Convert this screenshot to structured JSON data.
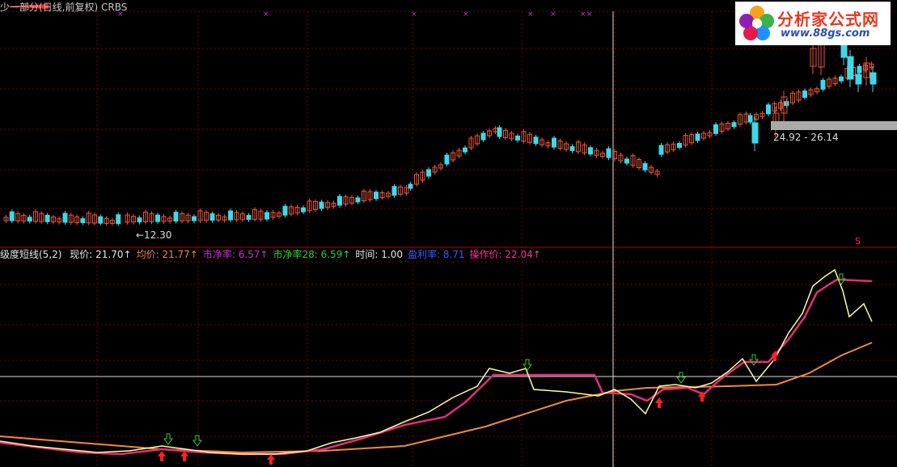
{
  "window": {
    "title": "少一部分(日线,前复权) CRBS",
    "colors": {
      "background": "#000000",
      "grid": "#7a0000",
      "up": "#e8553a",
      "down": "#3fd8e8",
      "crosshair": "#dddddd"
    }
  },
  "watermark": {
    "brand": "分析家公式网",
    "url": "www.88gs.com"
  },
  "price_panel": {
    "range_label": "24.92 - 26.14",
    "low_label": "←12.30",
    "marker_top": "S"
  },
  "indicator": {
    "name": "级度短线(5,2)",
    "fields": [
      {
        "label": "现价:",
        "value": "21.70",
        "arrow": "↑",
        "color": "#e6e6e6"
      },
      {
        "label": "均价:",
        "value": "21.77",
        "arrow": "↑",
        "color": "#f08a3a"
      },
      {
        "label": "市净率:",
        "value": "6.57",
        "arrow": "↑",
        "color": "#cc33cc"
      },
      {
        "label": "市净率28:",
        "value": "6.59",
        "arrow": "↑",
        "color": "#33cc33"
      },
      {
        "label": "时间:",
        "value": "1.00",
        "arrow": "",
        "color": "#e6e6e6"
      },
      {
        "label": "盈利率:",
        "value": "8.71",
        "arrow": "",
        "color": "#3a5bff"
      },
      {
        "label": "操作价:",
        "value": "22.04",
        "arrow": "↑",
        "color": "#ff3399"
      }
    ]
  },
  "lines": {
    "fast_color": "#ffffa0",
    "slow_color": "#e62d7a",
    "avg_color": "#f08a3a"
  }
}
